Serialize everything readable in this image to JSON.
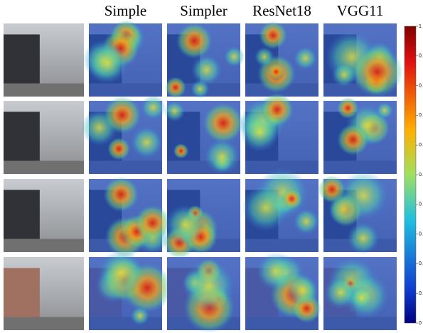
{
  "header": {
    "columns": [
      "Simple",
      "Simpler",
      "ResNet18",
      "VGG11"
    ]
  },
  "colorbar": {
    "labels": [
      "1",
      "0.",
      "0.",
      "0.",
      "0.",
      "0.",
      "0.",
      "0.",
      "0.",
      "0.",
      "0"
    ]
  }
}
